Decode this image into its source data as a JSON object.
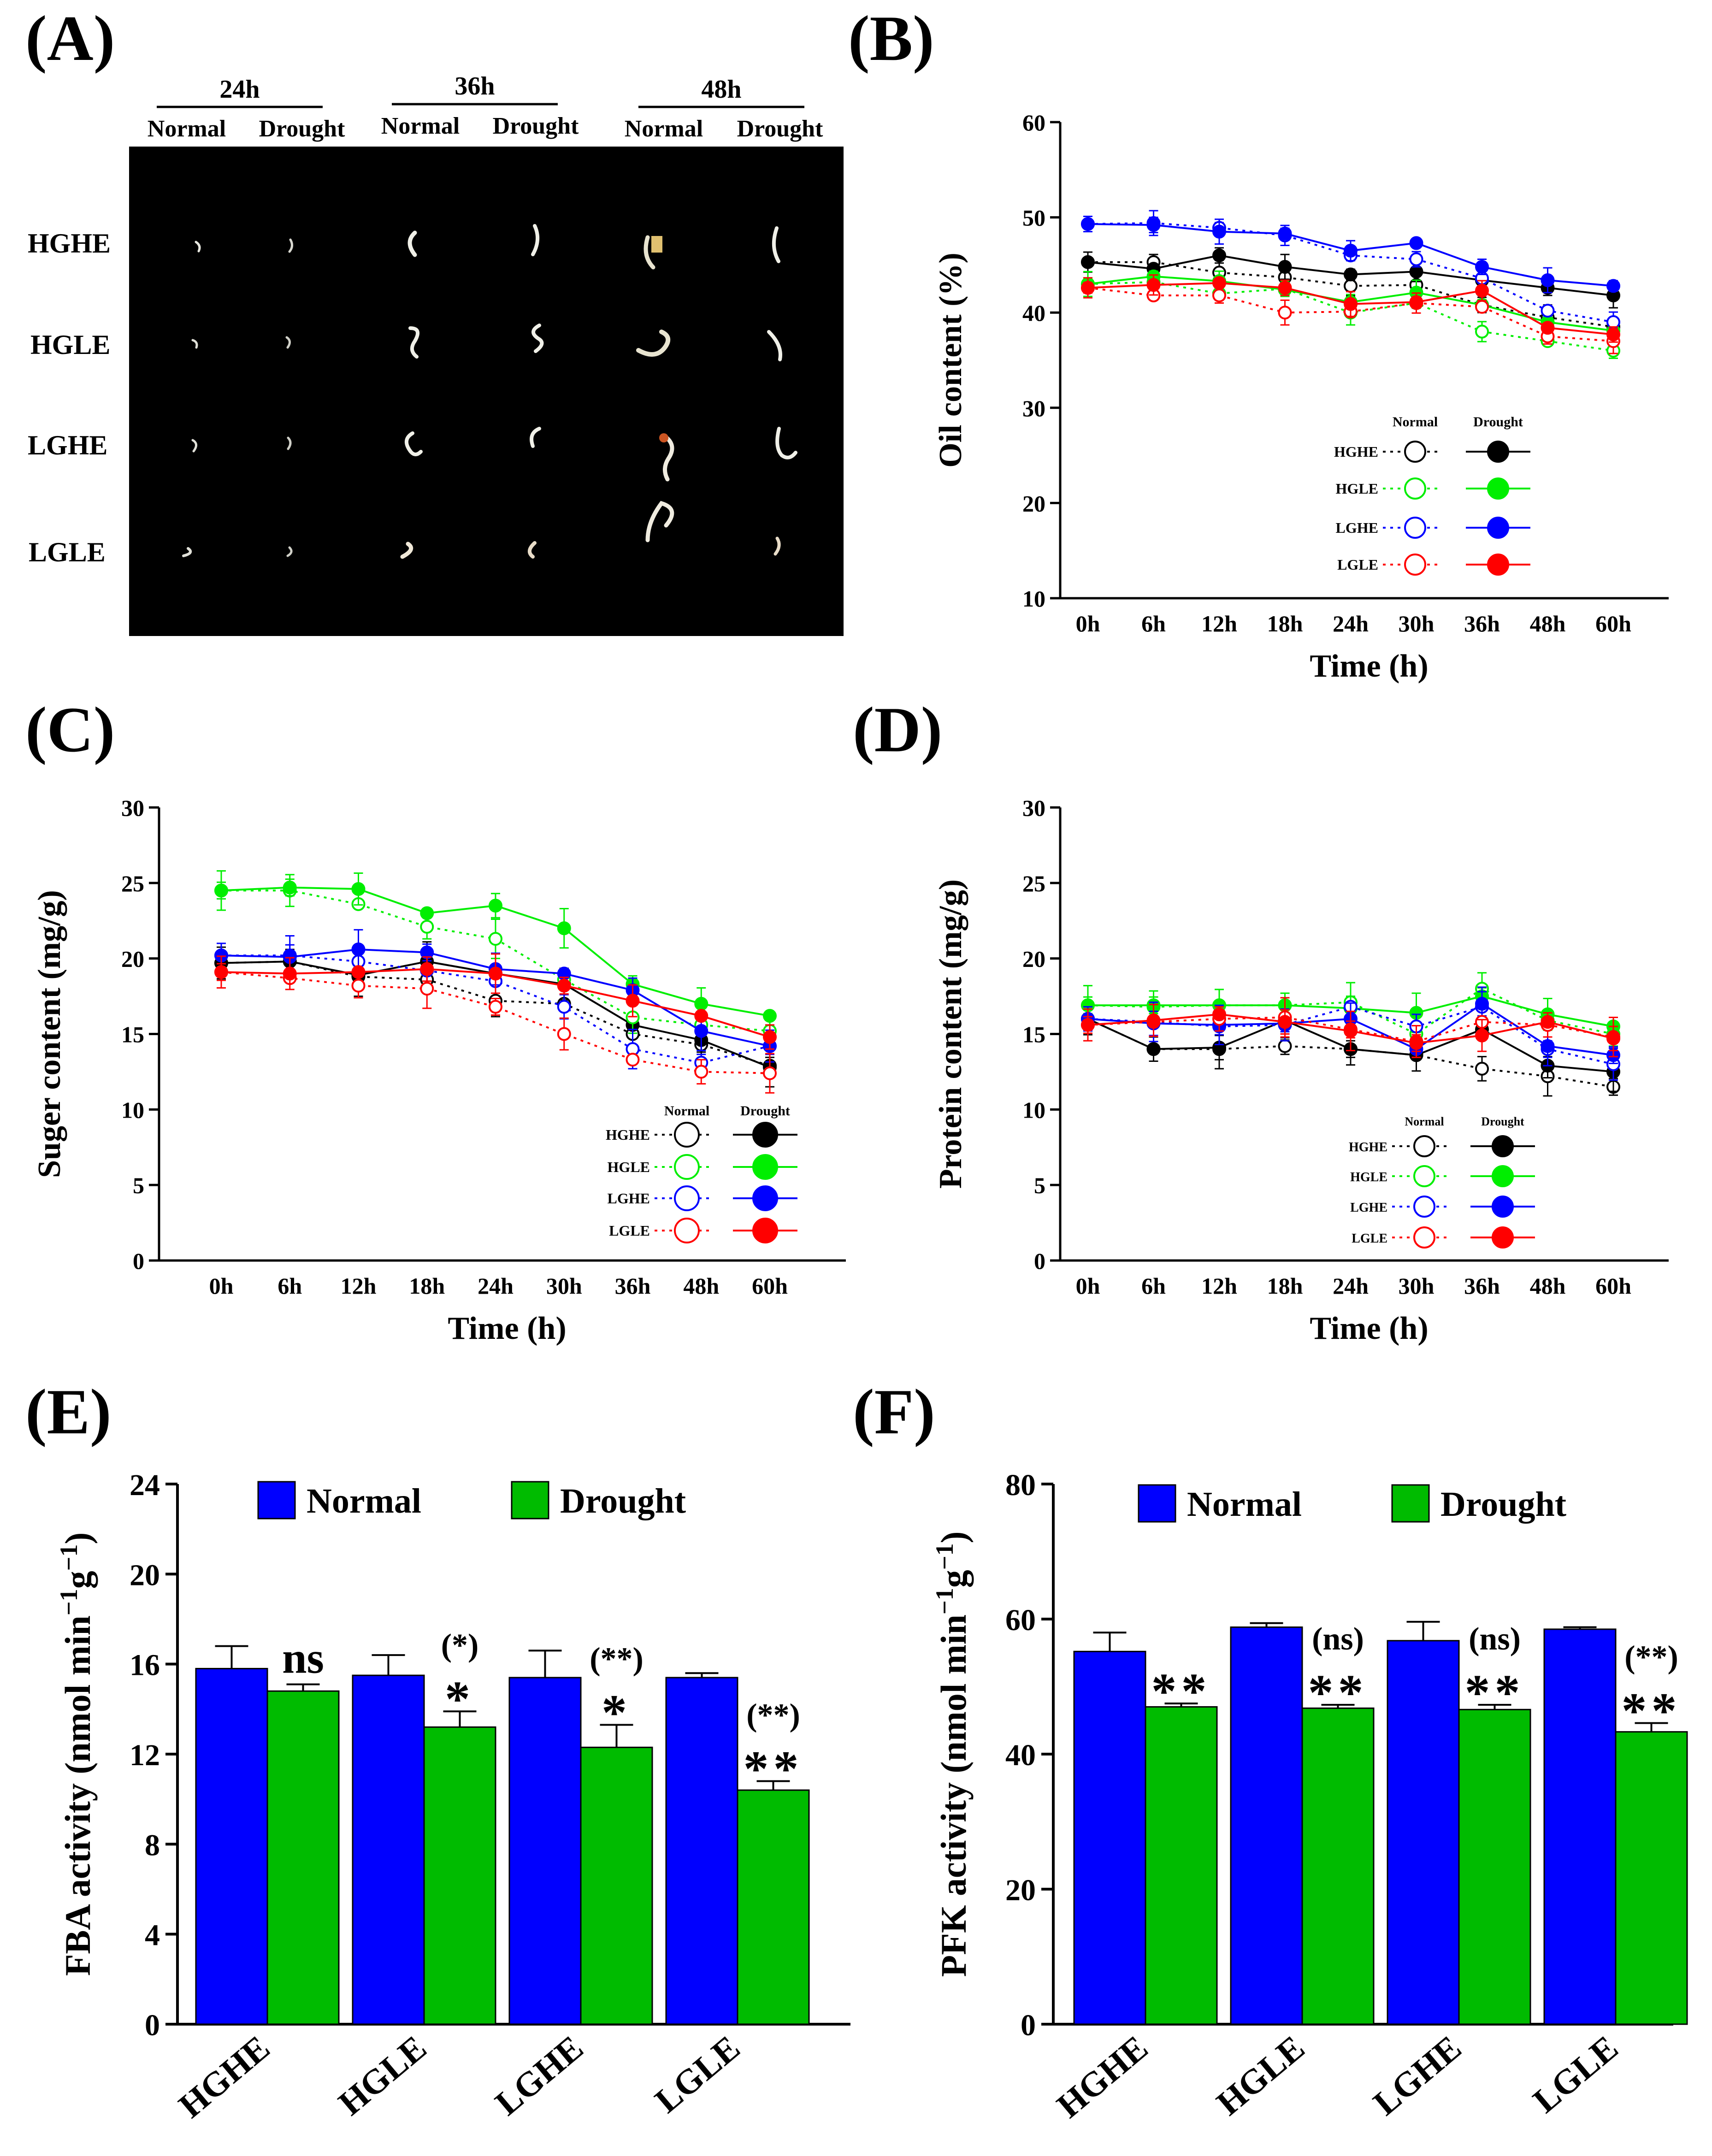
{
  "figure": {
    "panel_letters": [
      "(A)",
      "(B)",
      "(C)",
      "(D)",
      "(E)",
      "(F)"
    ]
  },
  "panel_a": {
    "time_headers": [
      "24h",
      "36h",
      "48h"
    ],
    "condition_labels": [
      "Normal",
      "Drought",
      "Normal",
      "Drought",
      "Normal",
      "Drought"
    ],
    "row_labels": [
      "HGHE",
      "HGLE",
      "LGHE",
      "LGLE"
    ]
  },
  "chart_data": [
    {
      "panel": "B",
      "type": "line",
      "xlabel": "Time (h)",
      "ylabel": "Oil content (%)",
      "categories": [
        "0h",
        "6h",
        "12h",
        "18h",
        "24h",
        "30h",
        "36h",
        "48h",
        "60h"
      ],
      "ylim": [
        10,
        60
      ],
      "yticks": [
        10,
        20,
        30,
        40,
        50,
        60
      ],
      "grid": false,
      "legend": {
        "placement": "bottom-right",
        "column_headers": [
          "Normal",
          "Drought"
        ]
      },
      "series": [
        {
          "name": "HGHE",
          "condition": "Normal",
          "color": "#000000",
          "values": [
            45.3,
            45.3,
            44.2,
            43.7,
            42.8,
            42.9,
            40.8,
            39.5,
            38.5
          ]
        },
        {
          "name": "HGHE",
          "condition": "Drought",
          "color": "#000000",
          "values": [
            45.3,
            44.6,
            46.0,
            44.8,
            44.0,
            44.3,
            43.4,
            42.6,
            41.8
          ]
        },
        {
          "name": "HGLE",
          "condition": "Normal",
          "color": "#00ee00",
          "values": [
            43.0,
            43.2,
            42.0,
            42.5,
            40.0,
            41.0,
            38.0,
            37.0,
            36.0
          ]
        },
        {
          "name": "HGLE",
          "condition": "Drought",
          "color": "#00ee00",
          "values": [
            43.0,
            43.8,
            43.3,
            42.4,
            41.1,
            42.1,
            40.8,
            39.0,
            38.1
          ]
        },
        {
          "name": "LGHE",
          "condition": "Normal",
          "color": "#0000ff",
          "values": [
            49.3,
            49.4,
            48.9,
            48.1,
            46.0,
            45.6,
            43.6,
            40.2,
            39.0
          ]
        },
        {
          "name": "LGHE",
          "condition": "Drought",
          "color": "#0000ff",
          "values": [
            49.3,
            49.2,
            48.5,
            48.3,
            46.5,
            47.3,
            44.8,
            43.4,
            42.8
          ]
        },
        {
          "name": "LGLE",
          "condition": "Normal",
          "color": "#ff0000",
          "values": [
            42.6,
            41.8,
            41.8,
            40.0,
            40.1,
            41.0,
            40.6,
            37.5,
            37.0
          ]
        },
        {
          "name": "LGLE",
          "condition": "Drought",
          "color": "#ff0000",
          "values": [
            42.6,
            42.9,
            43.1,
            42.6,
            40.9,
            41.1,
            42.3,
            38.4,
            37.7
          ]
        }
      ]
    },
    {
      "panel": "C",
      "type": "line",
      "xlabel": "Time (h)",
      "ylabel": "Suger content (mg/g)",
      "categories": [
        "0h",
        "6h",
        "12h",
        "18h",
        "24h",
        "30h",
        "36h",
        "48h",
        "60h"
      ],
      "ylim": [
        0,
        30
      ],
      "yticks": [
        0,
        5,
        10,
        15,
        20,
        25,
        30
      ],
      "grid": false,
      "legend": {
        "placement": "bottom-right",
        "column_headers": [
          "Normal",
          "Drought"
        ]
      },
      "series": [
        {
          "name": "HGHE",
          "condition": "Normal",
          "color": "#000000",
          "values": [
            19.7,
            19.8,
            18.8,
            18.6,
            17.2,
            17.0,
            15.0,
            14.3,
            12.9
          ]
        },
        {
          "name": "HGHE",
          "condition": "Drought",
          "color": "#000000",
          "values": [
            19.7,
            19.8,
            18.9,
            19.8,
            19.0,
            18.3,
            15.6,
            14.6,
            12.8
          ]
        },
        {
          "name": "HGLE",
          "condition": "Normal",
          "color": "#00ee00",
          "values": [
            24.5,
            24.5,
            23.6,
            22.1,
            21.3,
            18.6,
            16.1,
            15.6,
            15.2
          ]
        },
        {
          "name": "HGLE",
          "condition": "Drought",
          "color": "#00ee00",
          "values": [
            24.5,
            24.7,
            24.6,
            23.0,
            23.5,
            22.0,
            18.3,
            17.0,
            16.2
          ]
        },
        {
          "name": "LGHE",
          "condition": "Normal",
          "color": "#0000ff",
          "values": [
            20.2,
            20.2,
            19.8,
            19.2,
            18.5,
            16.8,
            14.0,
            13.1,
            14.2
          ]
        },
        {
          "name": "LGHE",
          "condition": "Drought",
          "color": "#0000ff",
          "values": [
            20.2,
            20.1,
            20.6,
            20.4,
            19.3,
            19.0,
            17.9,
            15.2,
            14.2
          ]
        },
        {
          "name": "LGLE",
          "condition": "Normal",
          "color": "#ff0000",
          "values": [
            19.1,
            18.7,
            18.2,
            18.0,
            16.8,
            15.0,
            13.3,
            12.5,
            12.4
          ]
        },
        {
          "name": "LGLE",
          "condition": "Drought",
          "color": "#ff0000",
          "values": [
            19.1,
            19.0,
            19.1,
            19.3,
            19.0,
            18.2,
            17.2,
            16.2,
            14.8
          ]
        }
      ]
    },
    {
      "panel": "D",
      "type": "line",
      "xlabel": "Time (h)",
      "ylabel": "Protein content (mg/g)",
      "categories": [
        "0h",
        "6h",
        "12h",
        "18h",
        "24h",
        "30h",
        "36h",
        "48h",
        "60h"
      ],
      "ylim": [
        0,
        30
      ],
      "yticks": [
        0,
        5,
        10,
        15,
        20,
        25,
        30
      ],
      "grid": false,
      "legend": {
        "placement": "bottom-right",
        "column_headers": [
          "Normal",
          "Drought"
        ]
      },
      "series": [
        {
          "name": "HGHE",
          "condition": "Normal",
          "color": "#000000",
          "values": [
            16.0,
            14.0,
            14.0,
            14.2,
            14.0,
            13.6,
            12.7,
            12.2,
            11.5
          ]
        },
        {
          "name": "HGHE",
          "condition": "Drought",
          "color": "#000000",
          "values": [
            16.0,
            14.0,
            14.1,
            15.9,
            14.0,
            13.6,
            15.3,
            12.9,
            12.5
          ]
        },
        {
          "name": "HGLE",
          "condition": "Normal",
          "color": "#00ee00",
          "values": [
            16.9,
            16.8,
            16.9,
            16.9,
            17.1,
            15.0,
            18.0,
            15.9,
            15.0
          ]
        },
        {
          "name": "HGLE",
          "condition": "Drought",
          "color": "#00ee00",
          "values": [
            16.9,
            16.9,
            16.9,
            16.9,
            16.7,
            16.4,
            17.5,
            16.3,
            15.5
          ]
        },
        {
          "name": "LGHE",
          "condition": "Normal",
          "color": "#0000ff",
          "values": [
            16.0,
            15.8,
            15.5,
            15.6,
            16.8,
            15.5,
            16.8,
            14.0,
            13.0
          ]
        },
        {
          "name": "LGHE",
          "condition": "Drought",
          "color": "#0000ff",
          "values": [
            16.0,
            15.7,
            15.6,
            15.7,
            16.0,
            14.0,
            17.0,
            14.2,
            13.6
          ]
        },
        {
          "name": "LGLE",
          "condition": "Normal",
          "color": "#ff0000",
          "values": [
            15.6,
            15.8,
            16.0,
            16.1,
            15.3,
            14.5,
            15.8,
            15.6,
            14.8
          ]
        },
        {
          "name": "LGLE",
          "condition": "Drought",
          "color": "#ff0000",
          "values": [
            15.6,
            15.9,
            16.3,
            15.8,
            15.2,
            14.4,
            14.9,
            15.8,
            14.7
          ]
        }
      ]
    },
    {
      "panel": "E",
      "type": "bar",
      "ylabel": "FBA activity (nmol min",
      "ylabel_sup1": "−1",
      "ylabel_mid": "g",
      "ylabel_sup2": "−1",
      "ylabel_end": ")",
      "categories": [
        "HGHE",
        "HGLE",
        "LGHE",
        "LGLE"
      ],
      "ylim": [
        0,
        24
      ],
      "yticks": [
        0,
        4,
        8,
        12,
        16,
        20,
        24
      ],
      "legend": {
        "placement": "top",
        "entries": [
          "Normal",
          "Drought"
        ]
      },
      "series": [
        {
          "name": "Normal",
          "color": "#0000ff",
          "values": [
            15.8,
            15.5,
            15.4,
            15.4
          ],
          "errors": [
            1.0,
            0.9,
            1.2,
            0.2
          ]
        },
        {
          "name": "Drought",
          "color": "#00bb00",
          "values": [
            14.8,
            13.2,
            12.3,
            10.4
          ],
          "errors": [
            0.3,
            0.7,
            1.0,
            0.4
          ]
        }
      ],
      "annotations": [
        {
          "category": "HGHE",
          "lines": [
            "ns"
          ]
        },
        {
          "category": "HGLE",
          "lines": [
            "(*)",
            "*"
          ]
        },
        {
          "category": "LGHE",
          "lines": [
            "(**)",
            "*"
          ]
        },
        {
          "category": "LGLE",
          "lines": [
            "(**)",
            "**"
          ]
        }
      ]
    },
    {
      "panel": "F",
      "type": "bar",
      "ylabel": "PFK activity (nmol min",
      "ylabel_sup1": "−1",
      "ylabel_mid": "g",
      "ylabel_sup2": "−1",
      "ylabel_end": ")",
      "categories": [
        "HGHE",
        "HGLE",
        "LGHE",
        "LGLE"
      ],
      "ylim": [
        0,
        80
      ],
      "yticks": [
        0,
        20,
        40,
        60,
        80
      ],
      "legend": {
        "placement": "top",
        "entries": [
          "Normal",
          "Drought"
        ]
      },
      "series": [
        {
          "name": "Normal",
          "color": "#0000ff",
          "values": [
            55.2,
            58.8,
            56.8,
            58.5
          ],
          "errors": [
            2.8,
            0.6,
            2.8,
            0.3
          ]
        },
        {
          "name": "Drought",
          "color": "#00bb00",
          "values": [
            47.0,
            46.8,
            46.6,
            43.3
          ],
          "errors": [
            0.5,
            0.5,
            0.7,
            1.3
          ]
        }
      ],
      "annotations": [
        {
          "category": "HGHE",
          "lines": [
            "**"
          ]
        },
        {
          "category": "HGLE",
          "lines": [
            "(ns)",
            "**"
          ]
        },
        {
          "category": "LGHE",
          "lines": [
            "(ns)",
            "**"
          ]
        },
        {
          "category": "LGLE",
          "lines": [
            "(**)",
            "**"
          ]
        }
      ]
    }
  ]
}
